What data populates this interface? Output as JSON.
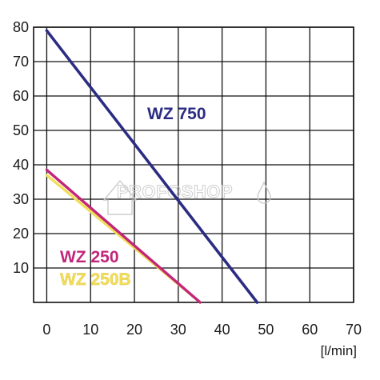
{
  "chart_data": {
    "type": "line",
    "xlabel": "[l/min]",
    "ylabel": "",
    "xlim": [
      -3,
      70
    ],
    "ylim": [
      0,
      80
    ],
    "x_ticks": [
      "0",
      "10",
      "20",
      "30",
      "40",
      "50",
      "60",
      "70"
    ],
    "y_ticks": [
      "10",
      "20",
      "30",
      "40",
      "50",
      "60",
      "70",
      "80"
    ],
    "grid": true,
    "series": [
      {
        "name": "WZ 750",
        "color": "#2b2d83",
        "x": [
          0,
          48
        ],
        "y": [
          79,
          0
        ]
      },
      {
        "name": "WZ 250B",
        "color": "#f2de5a",
        "x": [
          0,
          35
        ],
        "y": [
          37,
          0
        ]
      },
      {
        "name": "WZ 250",
        "color": "#c2267a",
        "x": [
          0,
          35
        ],
        "y": [
          38.5,
          0
        ]
      }
    ]
  },
  "watermark": {
    "text": "PROFOSHOP"
  }
}
